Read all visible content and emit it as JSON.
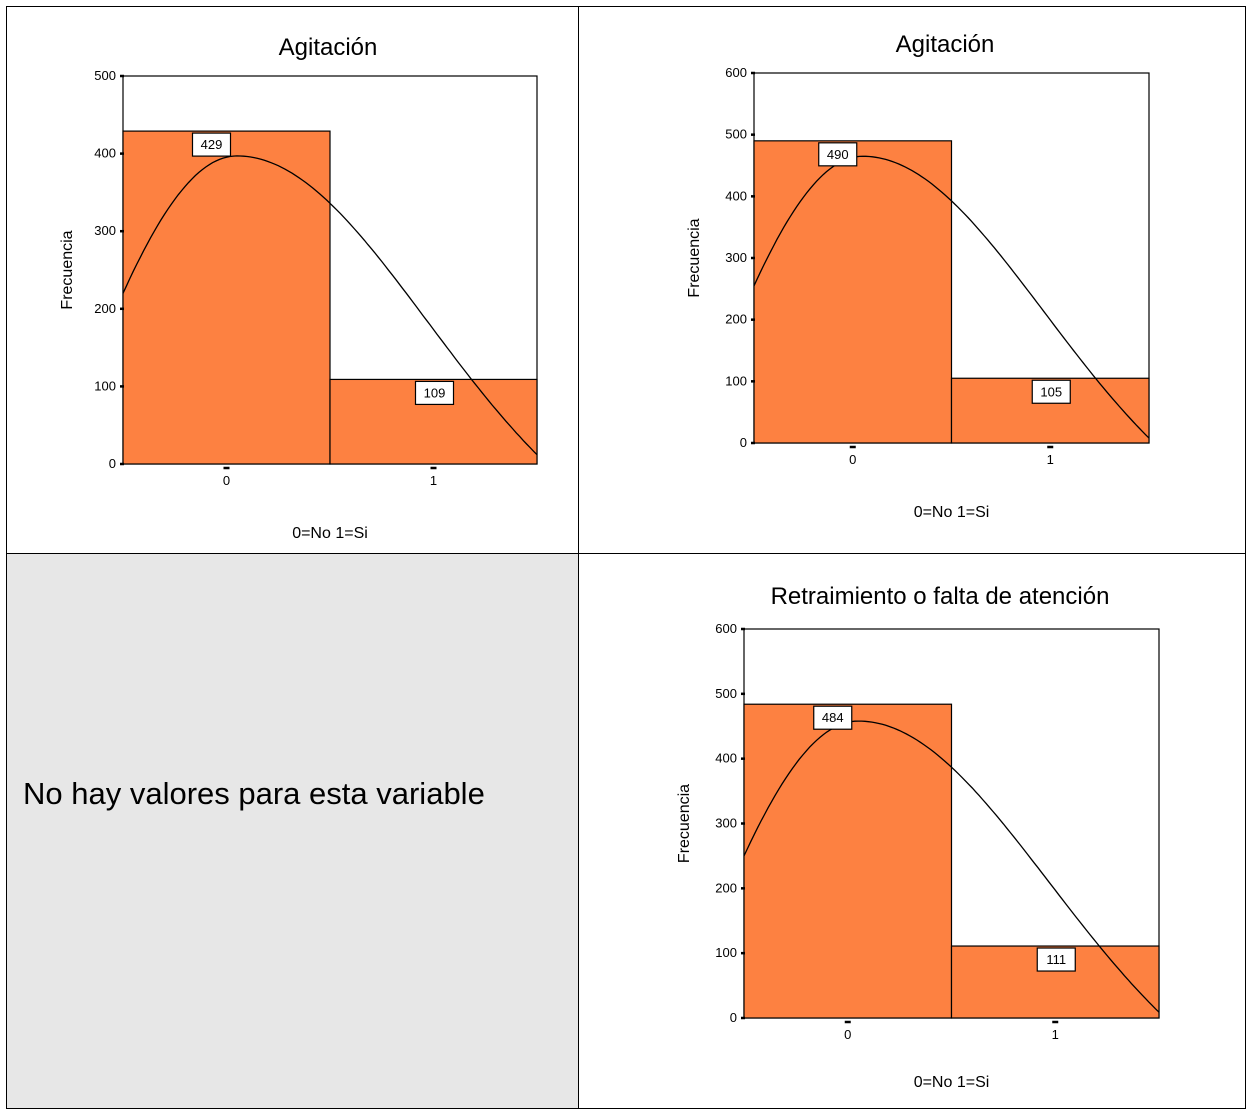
{
  "message": "No hay valores para esta variable",
  "style": {
    "bar_color": "#fd8141",
    "empty_bg": "#e7e7e7"
  },
  "chart_data": [
    {
      "type": "bar",
      "title": "Agitación",
      "xlabel": "0=No  1=Si",
      "ylabel": "Frecuencia",
      "categories": [
        "0",
        "1"
      ],
      "values": [
        429,
        109
      ],
      "ylim": [
        0,
        500
      ],
      "yticks": [
        0,
        100,
        200,
        300,
        400,
        500
      ],
      "data_labels": [
        "429",
        "109"
      ],
      "normal_curve": true,
      "normal_curve_y": [
        220,
        397,
        12
      ]
    },
    {
      "type": "bar",
      "title": "Agitación",
      "xlabel": "0=No  1=Si",
      "ylabel": "Frecuencia",
      "categories": [
        "0",
        "1"
      ],
      "values": [
        490,
        105
      ],
      "ylim": [
        0,
        600
      ],
      "yticks": [
        0,
        100,
        200,
        300,
        400,
        500,
        600
      ],
      "data_labels": [
        "490",
        "105"
      ],
      "normal_curve": true,
      "normal_curve_y": [
        255,
        465,
        8
      ]
    },
    {
      "type": "bar",
      "title": "Retraimiento o falta de atención",
      "xlabel": "0=No  1=Si",
      "ylabel": "Frecuencia",
      "categories": [
        "0",
        "1"
      ],
      "values": [
        484,
        111
      ],
      "ylim": [
        0,
        600
      ],
      "yticks": [
        0,
        100,
        200,
        300,
        400,
        500,
        600
      ],
      "data_labels": [
        "484",
        "111"
      ],
      "normal_curve": true,
      "normal_curve_y": [
        250,
        458,
        9
      ]
    }
  ]
}
